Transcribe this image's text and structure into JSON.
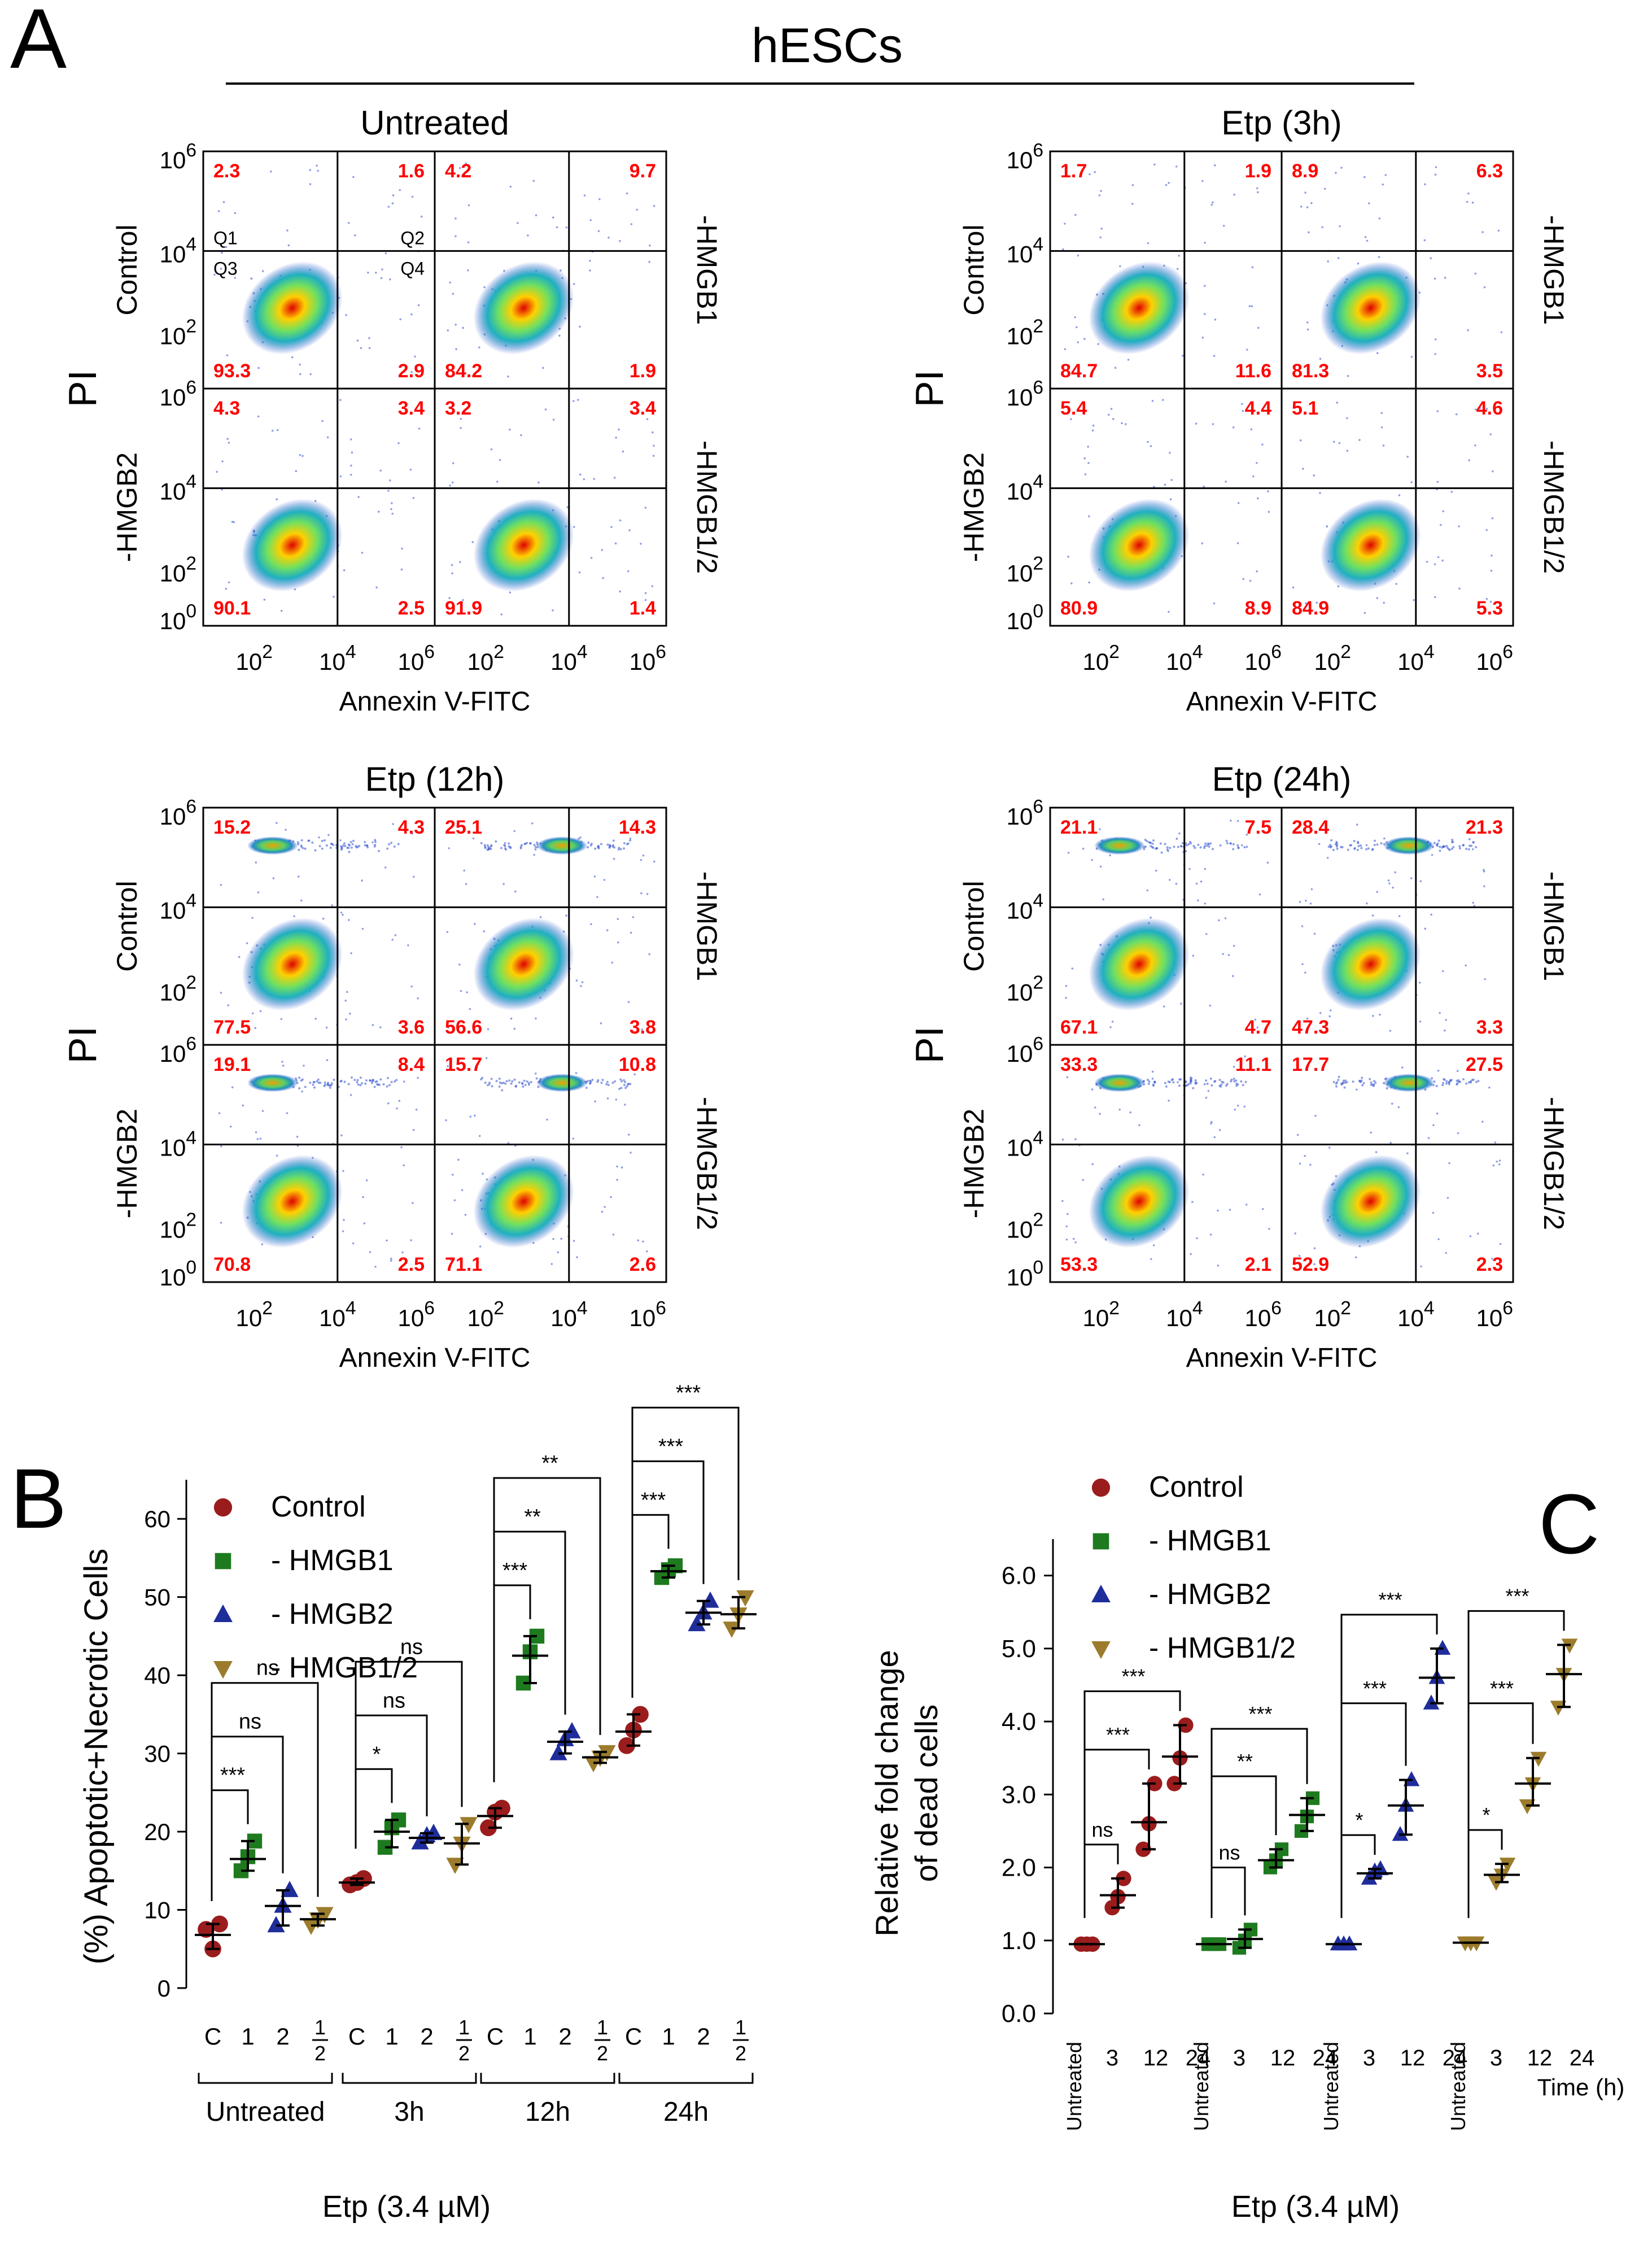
{
  "figure": {
    "panel_letters": [
      "A",
      "B",
      "C"
    ],
    "panel_a_title": "hESCs",
    "flow_x_label": "Annexin V-FITC",
    "flow_y_label": "PI",
    "row_labels": [
      "Control",
      "-HMGB2"
    ],
    "col_right_labels": [
      "-HMGB1",
      "-HMGB1/2"
    ],
    "quadrant_names": [
      "Q1",
      "Q2",
      "Q3",
      "Q4"
    ],
    "axis_base": "10",
    "axis_exponents": [
      "0",
      "2",
      "4",
      "6"
    ],
    "colors": {
      "control": "#9b1c1c",
      "hmgb1": "#1e7a1e",
      "hmgb2": "#1f2d9b",
      "hmgb12": "#9c7c2c",
      "quadrant_value": "#ff0000",
      "dot_blue": "#3050d0"
    }
  },
  "flow_panels": [
    {
      "title": "Untreated",
      "plots": [
        {
          "q1": "2.3",
          "q2": "1.6",
          "q3": "93.3",
          "q4": "2.9"
        },
        {
          "q1": "4.2",
          "q2": "9.7",
          "q3": "84.2",
          "q4": "1.9"
        },
        {
          "q1": "4.3",
          "q2": "3.4",
          "q3": "90.1",
          "q4": "2.5"
        },
        {
          "q1": "3.2",
          "q2": "3.4",
          "q3": "91.9",
          "q4": "1.4"
        }
      ]
    },
    {
      "title": "Etp (3h)",
      "plots": [
        {
          "q1": "1.7",
          "q2": "1.9",
          "q3": "84.7",
          "q4": "11.6"
        },
        {
          "q1": "8.9",
          "q2": "6.3",
          "q3": "81.3",
          "q4": "3.5"
        },
        {
          "q1": "5.4",
          "q2": "4.4",
          "q3": "80.9",
          "q4": "8.9"
        },
        {
          "q1": "5.1",
          "q2": "4.6",
          "q3": "84.9",
          "q4": "5.3"
        }
      ]
    },
    {
      "title": "Etp (12h)",
      "plots": [
        {
          "q1": "15.2",
          "q2": "4.3",
          "q3": "77.5",
          "q4": "3.6"
        },
        {
          "q1": "25.1",
          "q2": "14.3",
          "q3": "56.6",
          "q4": "3.8"
        },
        {
          "q1": "19.1",
          "q2": "8.4",
          "q3": "70.8",
          "q4": "2.5"
        },
        {
          "q1": "15.7",
          "q2": "10.8",
          "q3": "71.1",
          "q4": "2.6"
        }
      ]
    },
    {
      "title": "Etp (24h)",
      "plots": [
        {
          "q1": "21.1",
          "q2": "7.5",
          "q3": "67.1",
          "q4": "4.7"
        },
        {
          "q1": "28.4",
          "q2": "21.3",
          "q3": "47.3",
          "q4": "3.3"
        },
        {
          "q1": "33.3",
          "q2": "11.1",
          "q3": "53.3",
          "q4": "2.1"
        },
        {
          "q1": "17.7",
          "q2": "27.5",
          "q3": "52.9",
          "q4": "2.3"
        }
      ]
    }
  ],
  "chart_data": [
    {
      "type": "scatter",
      "panel": "B",
      "ylabel": "(%) Apoptotic+Necrotic Cells",
      "xlabel": "Etp (3.4 µM)",
      "ylim": [
        0,
        65
      ],
      "yticks": [
        0,
        10,
        20,
        30,
        40,
        50,
        60
      ],
      "legend": [
        "Control",
        "- HMGB1",
        "- HMGB2",
        "- HMGB1/2"
      ],
      "groups": [
        "Untreated",
        "3h",
        "12h",
        "24h"
      ],
      "sub_labels": [
        "C",
        "1",
        "2",
        "1/2"
      ],
      "series": [
        {
          "name": "Control",
          "values": [
            6.8,
            13.5,
            22.0,
            32.8
          ],
          "points": [
            [
              7.5,
              5.0,
              8.2
            ],
            [
              13.2,
              13.5,
              14.0
            ],
            [
              20.5,
              22.5,
              23.0
            ],
            [
              31.0,
              33.0,
              35.0
            ]
          ]
        },
        {
          "name": "- HMGB1",
          "values": [
            16.5,
            20.0,
            42.5,
            53.3
          ],
          "points": [
            [
              15.0,
              16.8,
              18.8
            ],
            [
              18.0,
              20.5,
              21.5
            ],
            [
              39.0,
              43.0,
              45.0
            ],
            [
              52.5,
              53.5,
              54.0
            ]
          ]
        },
        {
          "name": "- HMGB2",
          "values": [
            10.5,
            19.2,
            31.5,
            48.0
          ],
          "points": [
            [
              8.0,
              10.5,
              12.5
            ],
            [
              18.6,
              19.5,
              19.8
            ],
            [
              30.0,
              31.8,
              32.8
            ],
            [
              46.5,
              48.0,
              49.5
            ]
          ]
        },
        {
          "name": "- HMGB1/2",
          "values": [
            8.8,
            18.5,
            29.5,
            47.8
          ],
          "points": [
            [
              8.0,
              8.8,
              9.5
            ],
            [
              15.8,
              18.5,
              21.0
            ],
            [
              28.8,
              29.5,
              30.2
            ],
            [
              46.0,
              47.8,
              50.0
            ]
          ]
        }
      ],
      "significance": [
        {
          "group": "Untreated",
          "labels": [
            "***",
            "ns",
            "ns"
          ]
        },
        {
          "group": "3h",
          "labels": [
            "*",
            "ns",
            "ns"
          ]
        },
        {
          "group": "12h",
          "labels": [
            "***",
            "**",
            "**"
          ]
        },
        {
          "group": "24h",
          "labels": [
            "***",
            "***",
            "***"
          ]
        }
      ]
    },
    {
      "type": "scatter",
      "panel": "C",
      "ylabel_lines": [
        "Relative fold change",
        "of dead cells"
      ],
      "xlabel": "Etp (3.4 µM)",
      "time_label": "Time (h)",
      "ylim": [
        0.0,
        6.5
      ],
      "yticks": [
        "0.0",
        "1.0",
        "2.0",
        "3.0",
        "4.0",
        "5.0",
        "6.0"
      ],
      "legend": [
        "Control",
        "- HMGB1",
        "- HMGB2",
        "- HMGB1/2"
      ],
      "x_categories": [
        "Untreated",
        "3",
        "12",
        "24"
      ],
      "series": [
        {
          "name": "Control",
          "values": [
            0.95,
            1.62,
            2.62,
            3.52
          ],
          "points": [
            [
              0.95,
              0.95,
              0.95
            ],
            [
              1.45,
              1.6,
              1.85
            ],
            [
              2.25,
              2.6,
              3.15
            ],
            [
              3.15,
              3.5,
              3.95
            ]
          ]
        },
        {
          "name": "- HMGB1",
          "values": [
            0.95,
            1.02,
            2.1,
            2.72
          ],
          "points": [
            [
              0.95,
              0.95,
              0.95
            ],
            [
              0.9,
              1.0,
              1.15
            ],
            [
              2.0,
              2.1,
              2.25
            ],
            [
              2.5,
              2.7,
              2.95
            ]
          ]
        },
        {
          "name": "- HMGB2",
          "values": [
            0.95,
            1.92,
            2.85,
            4.6
          ],
          "points": [
            [
              0.95,
              0.95,
              0.95
            ],
            [
              1.85,
              1.95,
              1.98
            ],
            [
              2.45,
              2.85,
              3.2
            ],
            [
              4.25,
              4.6,
              5.0
            ]
          ]
        },
        {
          "name": "- HMGB1/2",
          "values": [
            0.97,
            1.9,
            3.15,
            4.65
          ],
          "points": [
            [
              0.97,
              0.97,
              0.97
            ],
            [
              1.8,
              1.9,
              2.05
            ],
            [
              2.85,
              3.15,
              3.5
            ],
            [
              4.2,
              4.65,
              5.05
            ]
          ]
        }
      ],
      "significance": [
        {
          "group": "Control",
          "labels": [
            "ns",
            "***",
            "***"
          ]
        },
        {
          "group": "- HMGB1",
          "labels": [
            "ns",
            "**",
            "***"
          ]
        },
        {
          "group": "- HMGB2",
          "labels": [
            "*",
            "***",
            "***"
          ]
        },
        {
          "group": "- HMGB1/2",
          "labels": [
            "*",
            "***",
            "***"
          ]
        }
      ]
    }
  ]
}
